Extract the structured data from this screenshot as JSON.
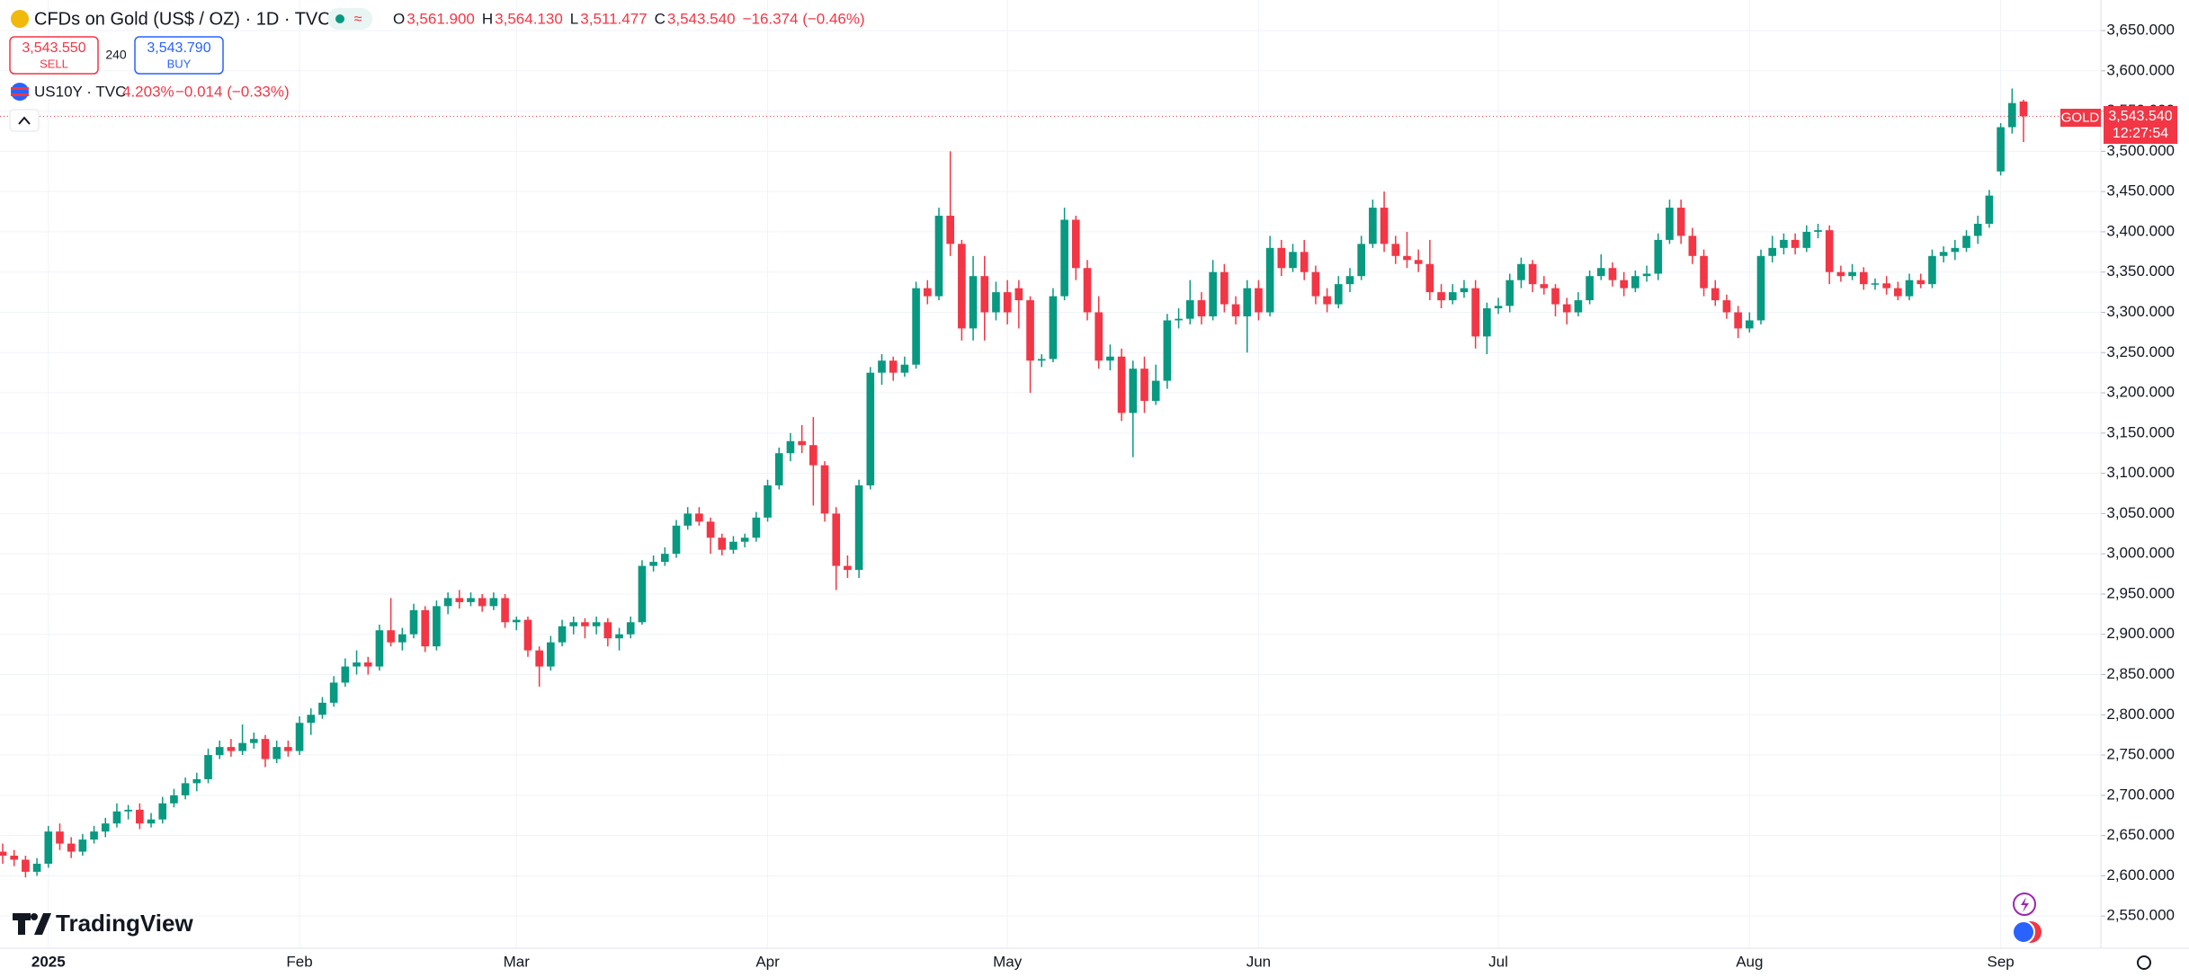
{
  "chart_data": {
    "type": "candlestick",
    "title": "CFDs on Gold (US$ / OZ) · 1D · TVC",
    "header_ohlc": [
      {
        "key": "O",
        "value": "3,561.900"
      },
      {
        "key": "H",
        "value": "3,564.130"
      },
      {
        "key": "L",
        "value": "3,511.477"
      },
      {
        "key": "C",
        "value": "3,543.540"
      }
    ],
    "change": "−16.374 (−0.46%)",
    "trade": {
      "sell_price": "3,543.550",
      "sell": "SELL",
      "quantity": "240",
      "buy_price": "3,543.790",
      "buy": "BUY"
    },
    "overlay": {
      "symbol": "US10Y · TVC",
      "value": "4.203%",
      "change": "−0.014 (−0.33%)"
    },
    "last_label": {
      "name": "GOLD",
      "price": "3,543.540",
      "countdown": "12:27:54"
    },
    "brand": "TradingView",
    "up_color": "#089981",
    "down_color": "#f23645",
    "grid": true,
    "ylim": [
      2510,
      3688
    ],
    "yticks": [
      {
        "value": 2550,
        "label": "2,550.000"
      },
      {
        "value": 2600,
        "label": "2,600.000"
      },
      {
        "value": 2650,
        "label": "2,650.000"
      },
      {
        "value": 2700,
        "label": "2,700.000"
      },
      {
        "value": 2750,
        "label": "2,750.000"
      },
      {
        "value": 2800,
        "label": "2,800.000"
      },
      {
        "value": 2850,
        "label": "2,850.000"
      },
      {
        "value": 2900,
        "label": "2,900.000"
      },
      {
        "value": 2950,
        "label": "2,950.000"
      },
      {
        "value": 3000,
        "label": "3,000.000"
      },
      {
        "value": 3050,
        "label": "3,050.000"
      },
      {
        "value": 3100,
        "label": "3,100.000"
      },
      {
        "value": 3150,
        "label": "3,150.000"
      },
      {
        "value": 3200,
        "label": "3,200.000"
      },
      {
        "value": 3250,
        "label": "3,250.000"
      },
      {
        "value": 3300,
        "label": "3,300.000"
      },
      {
        "value": 3350,
        "label": "3,350.000"
      },
      {
        "value": 3400,
        "label": "3,400.000"
      },
      {
        "value": 3450,
        "label": "3,450.000"
      },
      {
        "value": 3500,
        "label": "3,500.000"
      },
      {
        "value": 3550,
        "label": "3,550.000"
      },
      {
        "value": 3600,
        "label": "3,600.000"
      },
      {
        "value": 3650,
        "label": "3,650.000"
      }
    ],
    "categories": [
      null,
      null,
      null,
      null,
      "2025",
      null,
      null,
      null,
      null,
      null,
      null,
      null,
      null,
      null,
      null,
      null,
      null,
      null,
      null,
      null,
      null,
      null,
      null,
      null,
      null,
      null,
      "Feb",
      null,
      null,
      null,
      null,
      null,
      null,
      null,
      null,
      null,
      null,
      null,
      null,
      null,
      null,
      null,
      null,
      null,
      null,
      "Mar",
      null,
      null,
      null,
      null,
      null,
      null,
      null,
      null,
      null,
      null,
      null,
      null,
      null,
      null,
      null,
      null,
      null,
      null,
      null,
      null,
      null,
      "Apr",
      null,
      null,
      null,
      null,
      null,
      null,
      null,
      null,
      null,
      null,
      null,
      null,
      null,
      null,
      null,
      null,
      null,
      null,
      null,
      null,
      "May",
      null,
      null,
      null,
      null,
      null,
      null,
      null,
      null,
      null,
      null,
      null,
      null,
      null,
      null,
      null,
      null,
      null,
      null,
      null,
      null,
      null,
      "Jun",
      null,
      null,
      null,
      null,
      null,
      null,
      null,
      null,
      null,
      null,
      null,
      null,
      null,
      null,
      null,
      null,
      null,
      null,
      null,
      null,
      "Jul",
      null,
      null,
      null,
      null,
      null,
      null,
      null,
      null,
      null,
      null,
      null,
      null,
      null,
      null,
      null,
      null,
      null,
      null,
      null,
      null,
      null,
      "Aug",
      null,
      null,
      null,
      null,
      null,
      null,
      null,
      null,
      null,
      null,
      null,
      null,
      null,
      null,
      null,
      null,
      null,
      null,
      null,
      null,
      null,
      "Sep",
      null,
      null
    ],
    "ohlc": [
      [
        2630,
        2640,
        2615,
        2625
      ],
      [
        2625,
        2632,
        2612,
        2620
      ],
      [
        2620,
        2625,
        2598,
        2605
      ],
      [
        2605,
        2622,
        2600,
        2615
      ],
      [
        2615,
        2662,
        2610,
        2655
      ],
      [
        2655,
        2665,
        2632,
        2640
      ],
      [
        2640,
        2648,
        2622,
        2630
      ],
      [
        2630,
        2652,
        2625,
        2645
      ],
      [
        2645,
        2662,
        2640,
        2655
      ],
      [
        2655,
        2672,
        2648,
        2665
      ],
      [
        2665,
        2690,
        2660,
        2680
      ],
      [
        2680,
        2688,
        2670,
        2682
      ],
      [
        2682,
        2690,
        2658,
        2665
      ],
      [
        2665,
        2678,
        2660,
        2670
      ],
      [
        2670,
        2698,
        2665,
        2690
      ],
      [
        2690,
        2708,
        2685,
        2700
      ],
      [
        2700,
        2722,
        2695,
        2715
      ],
      [
        2715,
        2728,
        2705,
        2720
      ],
      [
        2720,
        2758,
        2715,
        2750
      ],
      [
        2750,
        2768,
        2745,
        2760
      ],
      [
        2760,
        2770,
        2748,
        2755
      ],
      [
        2755,
        2788,
        2750,
        2765
      ],
      [
        2765,
        2778,
        2758,
        2770
      ],
      [
        2770,
        2775,
        2735,
        2745
      ],
      [
        2745,
        2768,
        2740,
        2760
      ],
      [
        2760,
        2768,
        2748,
        2755
      ],
      [
        2755,
        2798,
        2750,
        2790
      ],
      [
        2790,
        2808,
        2775,
        2800
      ],
      [
        2800,
        2822,
        2795,
        2815
      ],
      [
        2815,
        2848,
        2810,
        2840
      ],
      [
        2840,
        2870,
        2835,
        2860
      ],
      [
        2860,
        2880,
        2850,
        2865
      ],
      [
        2865,
        2872,
        2850,
        2860
      ],
      [
        2860,
        2912,
        2855,
        2905
      ],
      [
        2905,
        2945,
        2885,
        2890
      ],
      [
        2890,
        2908,
        2880,
        2900
      ],
      [
        2900,
        2938,
        2895,
        2930
      ],
      [
        2930,
        2935,
        2878,
        2885
      ],
      [
        2885,
        2942,
        2880,
        2935
      ],
      [
        2935,
        2952,
        2925,
        2945
      ],
      [
        2945,
        2955,
        2932,
        2940
      ],
      [
        2940,
        2952,
        2935,
        2945
      ],
      [
        2945,
        2950,
        2928,
        2935
      ],
      [
        2935,
        2952,
        2930,
        2945
      ],
      [
        2945,
        2950,
        2908,
        2915
      ],
      [
        2915,
        2922,
        2905,
        2918
      ],
      [
        2918,
        2922,
        2872,
        2880
      ],
      [
        2880,
        2885,
        2835,
        2860
      ],
      [
        2860,
        2898,
        2855,
        2890
      ],
      [
        2890,
        2918,
        2885,
        2910
      ],
      [
        2910,
        2922,
        2900,
        2915
      ],
      [
        2915,
        2920,
        2895,
        2910
      ],
      [
        2910,
        2922,
        2900,
        2915
      ],
      [
        2915,
        2920,
        2885,
        2895
      ],
      [
        2895,
        2908,
        2880,
        2900
      ],
      [
        2900,
        2922,
        2895,
        2915
      ],
      [
        2915,
        2992,
        2912,
        2985
      ],
      [
        2985,
        2998,
        2978,
        2990
      ],
      [
        2990,
        3008,
        2985,
        3000
      ],
      [
        3000,
        3042,
        2995,
        3035
      ],
      [
        3035,
        3058,
        3030,
        3050
      ],
      [
        3050,
        3058,
        3035,
        3040
      ],
      [
        3040,
        3045,
        3000,
        3020
      ],
      [
        3020,
        3025,
        2998,
        3005
      ],
      [
        3005,
        3022,
        3000,
        3015
      ],
      [
        3015,
        3025,
        3008,
        3020
      ],
      [
        3020,
        3052,
        3015,
        3045
      ],
      [
        3045,
        3092,
        3040,
        3085
      ],
      [
        3085,
        3132,
        3080,
        3125
      ],
      [
        3125,
        3150,
        3115,
        3140
      ],
      [
        3140,
        3160,
        3125,
        3135
      ],
      [
        3135,
        3170,
        3060,
        3110
      ],
      [
        3110,
        3115,
        3040,
        3050
      ],
      [
        3050,
        3058,
        2955,
        2985
      ],
      [
        2985,
        2998,
        2970,
        2980
      ],
      [
        2980,
        3092,
        2970,
        3085
      ],
      [
        3085,
        3232,
        3080,
        3225
      ],
      [
        3225,
        3248,
        3210,
        3240
      ],
      [
        3240,
        3245,
        3215,
        3225
      ],
      [
        3225,
        3245,
        3220,
        3235
      ],
      [
        3235,
        3338,
        3230,
        3330
      ],
      [
        3330,
        3340,
        3310,
        3320
      ],
      [
        3320,
        3430,
        3315,
        3420
      ],
      [
        3420,
        3500,
        3370,
        3385
      ],
      [
        3385,
        3390,
        3265,
        3280
      ],
      [
        3280,
        3370,
        3265,
        3345
      ],
      [
        3345,
        3370,
        3265,
        3300
      ],
      [
        3300,
        3338,
        3290,
        3325
      ],
      [
        3325,
        3340,
        3285,
        3300
      ],
      [
        3330,
        3340,
        3280,
        3315
      ],
      [
        3315,
        3320,
        3200,
        3240
      ],
      [
        3240,
        3248,
        3232,
        3242
      ],
      [
        3242,
        3330,
        3238,
        3320
      ],
      [
        3320,
        3430,
        3315,
        3415
      ],
      [
        3415,
        3420,
        3340,
        3355
      ],
      [
        3355,
        3365,
        3290,
        3300
      ],
      [
        3300,
        3320,
        3230,
        3240
      ],
      [
        3240,
        3260,
        3228,
        3245
      ],
      [
        3245,
        3255,
        3165,
        3175
      ],
      [
        3175,
        3240,
        3120,
        3230
      ],
      [
        3230,
        3245,
        3175,
        3190
      ],
      [
        3190,
        3235,
        3185,
        3215
      ],
      [
        3215,
        3298,
        3205,
        3290
      ],
      [
        3290,
        3305,
        3280,
        3292
      ],
      [
        3292,
        3340,
        3285,
        3315
      ],
      [
        3315,
        3325,
        3285,
        3295
      ],
      [
        3295,
        3365,
        3290,
        3350
      ],
      [
        3350,
        3360,
        3300,
        3310
      ],
      [
        3310,
        3320,
        3285,
        3295
      ],
      [
        3295,
        3340,
        3250,
        3330
      ],
      [
        3330,
        3340,
        3290,
        3300
      ],
      [
        3300,
        3395,
        3295,
        3380
      ],
      [
        3380,
        3390,
        3345,
        3355
      ],
      [
        3355,
        3385,
        3350,
        3375
      ],
      [
        3375,
        3390,
        3340,
        3350
      ],
      [
        3350,
        3358,
        3310,
        3320
      ],
      [
        3320,
        3330,
        3300,
        3310
      ],
      [
        3310,
        3345,
        3305,
        3335
      ],
      [
        3335,
        3355,
        3325,
        3345
      ],
      [
        3345,
        3395,
        3340,
        3385
      ],
      [
        3385,
        3440,
        3380,
        3430
      ],
      [
        3430,
        3450,
        3375,
        3385
      ],
      [
        3385,
        3395,
        3360,
        3370
      ],
      [
        3370,
        3400,
        3355,
        3365
      ],
      [
        3365,
        3378,
        3350,
        3360
      ],
      [
        3360,
        3390,
        3315,
        3325
      ],
      [
        3325,
        3335,
        3305,
        3315
      ],
      [
        3315,
        3335,
        3310,
        3325
      ],
      [
        3325,
        3340,
        3318,
        3330
      ],
      [
        3330,
        3340,
        3255,
        3270
      ],
      [
        3270,
        3312,
        3248,
        3305
      ],
      [
        3305,
        3318,
        3298,
        3308
      ],
      [
        3308,
        3348,
        3300,
        3340
      ],
      [
        3340,
        3368,
        3330,
        3360
      ],
      [
        3360,
        3365,
        3325,
        3335
      ],
      [
        3335,
        3345,
        3322,
        3330
      ],
      [
        3330,
        3335,
        3295,
        3310
      ],
      [
        3310,
        3318,
        3285,
        3300
      ],
      [
        3300,
        3325,
        3295,
        3315
      ],
      [
        3315,
        3352,
        3310,
        3345
      ],
      [
        3345,
        3372,
        3340,
        3355
      ],
      [
        3355,
        3362,
        3332,
        3340
      ],
      [
        3340,
        3350,
        3320,
        3330
      ],
      [
        3330,
        3352,
        3325,
        3345
      ],
      [
        3345,
        3358,
        3338,
        3348
      ],
      [
        3348,
        3398,
        3340,
        3390
      ],
      [
        3390,
        3440,
        3385,
        3430
      ],
      [
        3430,
        3440,
        3385,
        3395
      ],
      [
        3395,
        3405,
        3360,
        3370
      ],
      [
        3370,
        3378,
        3320,
        3330
      ],
      [
        3330,
        3340,
        3308,
        3315
      ],
      [
        3315,
        3322,
        3292,
        3300
      ],
      [
        3300,
        3308,
        3268,
        3280
      ],
      [
        3280,
        3300,
        3275,
        3290
      ],
      [
        3290,
        3378,
        3285,
        3370
      ],
      [
        3370,
        3395,
        3362,
        3380
      ],
      [
        3380,
        3398,
        3372,
        3390
      ],
      [
        3390,
        3398,
        3372,
        3380
      ],
      [
        3380,
        3408,
        3375,
        3400
      ],
      [
        3400,
        3410,
        3392,
        3402
      ],
      [
        3402,
        3408,
        3335,
        3350
      ],
      [
        3350,
        3358,
        3338,
        3345
      ],
      [
        3345,
        3360,
        3340,
        3350
      ],
      [
        3350,
        3356,
        3328,
        3335
      ],
      [
        3335,
        3342,
        3328,
        3336
      ],
      [
        3336,
        3345,
        3322,
        3330
      ],
      [
        3330,
        3338,
        3315,
        3320
      ],
      [
        3320,
        3348,
        3315,
        3340
      ],
      [
        3340,
        3348,
        3330,
        3335
      ],
      [
        3335,
        3378,
        3330,
        3370
      ],
      [
        3370,
        3382,
        3362,
        3375
      ],
      [
        3375,
        3390,
        3365,
        3380
      ],
      [
        3380,
        3402,
        3375,
        3395
      ],
      [
        3395,
        3420,
        3385,
        3410
      ],
      [
        3410,
        3452,
        3405,
        3445
      ],
      [
        3475,
        3535,
        3470,
        3530
      ],
      [
        3530,
        3578,
        3522,
        3560
      ],
      [
        3561.9,
        3564.13,
        3511.477,
        3543.54
      ]
    ]
  }
}
